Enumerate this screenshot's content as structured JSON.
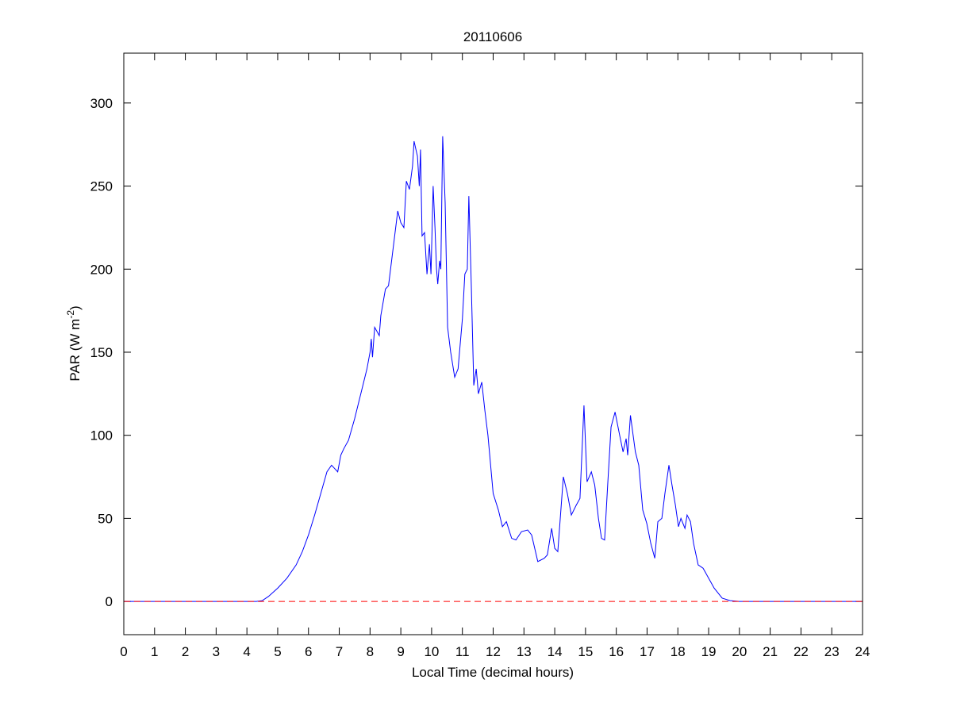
{
  "chart_data": {
    "type": "line",
    "title": "20110606",
    "xlabel": "Local Time (decimal hours)",
    "ylabel": {
      "text": "PAR (W m",
      "superscript": "-2",
      "suffix": ")"
    },
    "xlim": [
      0,
      24
    ],
    "ylim": [
      -20,
      330
    ],
    "xticks": [
      0,
      1,
      2,
      3,
      4,
      5,
      6,
      7,
      8,
      9,
      10,
      11,
      12,
      13,
      14,
      15,
      16,
      17,
      18,
      19,
      20,
      21,
      22,
      23,
      24
    ],
    "yticks": [
      0,
      50,
      100,
      150,
      200,
      250,
      300
    ],
    "reference_line": {
      "value": 0,
      "color": "#ff0000",
      "style": "dashed"
    },
    "series": [
      {
        "color": "#0000ff",
        "x": [
          0,
          4.3,
          4.5,
          4.7,
          5.0,
          5.3,
          5.6,
          5.8,
          6.0,
          6.2,
          6.4,
          6.6,
          6.75,
          6.85,
          6.95,
          7.05,
          7.15,
          7.3,
          7.5,
          7.7,
          7.9,
          8.0,
          8.04,
          8.08,
          8.15,
          8.3,
          8.35,
          8.5,
          8.6,
          8.7,
          8.8,
          8.9,
          9.0,
          9.1,
          9.18,
          9.28,
          9.38,
          9.43,
          9.54,
          9.6,
          9.64,
          9.69,
          9.77,
          9.85,
          9.93,
          9.98,
          10.05,
          10.11,
          10.16,
          10.2,
          10.26,
          10.3,
          10.36,
          10.44,
          10.52,
          10.62,
          10.75,
          10.86,
          11.0,
          11.08,
          11.16,
          11.21,
          11.29,
          11.37,
          11.45,
          11.52,
          11.63,
          11.73,
          11.83,
          12.0,
          12.17,
          12.3,
          12.43,
          12.6,
          12.74,
          12.92,
          13.12,
          13.25,
          13.45,
          13.66,
          13.76,
          13.9,
          14.0,
          14.1,
          14.28,
          14.41,
          14.54,
          14.7,
          14.82,
          14.95,
          15.05,
          15.19,
          15.3,
          15.42,
          15.52,
          15.62,
          15.72,
          15.83,
          15.96,
          16.11,
          16.22,
          16.32,
          16.37,
          16.46,
          16.62,
          16.73,
          16.86,
          16.99,
          17.12,
          17.25,
          17.35,
          17.48,
          17.58,
          17.71,
          17.81,
          17.92,
          18.02,
          18.1,
          18.23,
          18.3,
          18.41,
          18.51,
          18.66,
          18.82,
          18.97,
          19.18,
          19.44,
          19.7,
          20.0,
          24
        ],
        "values": [
          0,
          0,
          0.5,
          3,
          8,
          14,
          22,
          30,
          40,
          52,
          65,
          78,
          82,
          80,
          78,
          88,
          92,
          97,
          110,
          125,
          140,
          150,
          158,
          147,
          165,
          160,
          172,
          188,
          190,
          205,
          220,
          235,
          228,
          225,
          253,
          248,
          262,
          277,
          268,
          250,
          272,
          220,
          222,
          197,
          215,
          197,
          250,
          225,
          200,
          191,
          205,
          200,
          280,
          240,
          165,
          150,
          135,
          140,
          170,
          197,
          200,
          244,
          190,
          130,
          140,
          125,
          132,
          115,
          100,
          65,
          55,
          45,
          48,
          38,
          37,
          42,
          43,
          40,
          24,
          26,
          28,
          44,
          32,
          30,
          75,
          65,
          52,
          58,
          62,
          118,
          72,
          78,
          70,
          50,
          38,
          37,
          70,
          105,
          114,
          100,
          90,
          98,
          88,
          112,
          90,
          82,
          55,
          47,
          35,
          26,
          48,
          50,
          65,
          82,
          70,
          58,
          45,
          50,
          44,
          52,
          48,
          35,
          22,
          20,
          15,
          8,
          2,
          0.5,
          0,
          0
        ]
      }
    ]
  }
}
